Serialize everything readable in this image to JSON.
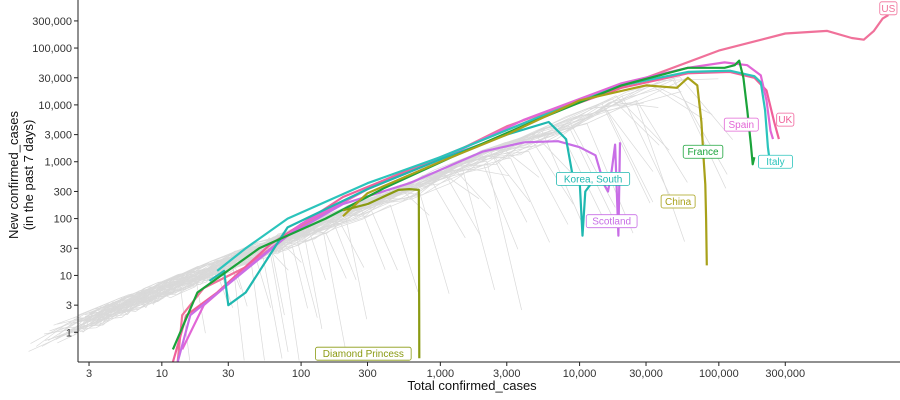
{
  "chart_data": {
    "type": "line",
    "title": "",
    "xlabel": "Total confirmed_cases",
    "ylabel_line1": "New confirmed_cases",
    "ylabel_line2": "(in the past 7 days)",
    "x_scale": "log",
    "y_scale": "log",
    "xlim": [
      2.5,
      2000000
    ],
    "ylim": [
      0.3,
      700000
    ],
    "x_ticks": [
      {
        "value": 3,
        "label": "3"
      },
      {
        "value": 10,
        "label": "10"
      },
      {
        "value": 30,
        "label": "30"
      },
      {
        "value": 100,
        "label": "100"
      },
      {
        "value": 300,
        "label": "300"
      },
      {
        "value": 1000,
        "label": "1,000"
      },
      {
        "value": 3000,
        "label": "3,000"
      },
      {
        "value": 10000,
        "label": "10,000"
      },
      {
        "value": 30000,
        "label": "30,000"
      },
      {
        "value": 100000,
        "label": "100,000"
      },
      {
        "value": 300000,
        "label": "300,000"
      }
    ],
    "y_ticks": [
      {
        "value": 1,
        "label": "1"
      },
      {
        "value": 3,
        "label": "3"
      },
      {
        "value": 10,
        "label": "10"
      },
      {
        "value": 30,
        "label": "30"
      },
      {
        "value": 100,
        "label": "100"
      },
      {
        "value": 300,
        "label": "300"
      },
      {
        "value": 1000,
        "label": "1,000"
      },
      {
        "value": 3000,
        "label": "3,000"
      },
      {
        "value": 10000,
        "label": "10,000"
      },
      {
        "value": 30000,
        "label": "30,000"
      },
      {
        "value": 100000,
        "label": "100,000"
      },
      {
        "value": 300000,
        "label": "300,000"
      }
    ],
    "grid": false,
    "legend": "none",
    "series": [
      {
        "name": "US",
        "color": "#f0719a",
        "points": [
          [
            13,
            0.3
          ],
          [
            14,
            2
          ],
          [
            20,
            6
          ],
          [
            40,
            14
          ],
          [
            100,
            75
          ],
          [
            300,
            330
          ],
          [
            1000,
            1100
          ],
          [
            3000,
            4200
          ],
          [
            10000,
            12000
          ],
          [
            30000,
            30000
          ],
          [
            100000,
            90000
          ],
          [
            300000,
            180000
          ],
          [
            600000,
            200000
          ],
          [
            900000,
            150000
          ],
          [
            1100000,
            140000
          ],
          [
            1300000,
            200000
          ],
          [
            1500000,
            330000
          ],
          [
            1650000,
            380000
          ]
        ]
      },
      {
        "name": "UK",
        "color": "#f0609a",
        "points": [
          [
            12,
            0.3
          ],
          [
            15,
            2
          ],
          [
            25,
            5
          ],
          [
            60,
            35
          ],
          [
            200,
            240
          ],
          [
            1000,
            1200
          ],
          [
            5000,
            6000
          ],
          [
            20000,
            20000
          ],
          [
            60000,
            36000
          ],
          [
            120000,
            38000
          ],
          [
            180000,
            30000
          ],
          [
            220000,
            18000
          ],
          [
            250000,
            5000
          ],
          [
            270000,
            2500
          ]
        ]
      },
      {
        "name": "Spain",
        "color": "#e266d6",
        "points": [
          [
            14,
            0.5
          ],
          [
            20,
            3
          ],
          [
            40,
            13
          ],
          [
            100,
            80
          ],
          [
            300,
            330
          ],
          [
            1000,
            1100
          ],
          [
            4000,
            5500
          ],
          [
            20000,
            24000
          ],
          [
            60000,
            45000
          ],
          [
            110000,
            56000
          ],
          [
            160000,
            50000
          ],
          [
            200000,
            33000
          ],
          [
            220000,
            12000
          ],
          [
            235000,
            3500
          ],
          [
            245000,
            2500
          ]
        ]
      },
      {
        "name": "Scotland",
        "color": "#c86ee6",
        "points": [
          [
            13,
            0.3
          ],
          [
            16,
            2
          ],
          [
            30,
            7
          ],
          [
            80,
            50
          ],
          [
            200,
            180
          ],
          [
            600,
            420
          ],
          [
            2000,
            1500
          ],
          [
            4000,
            2200
          ],
          [
            7000,
            2300
          ],
          [
            10000,
            1800
          ],
          [
            13000,
            1300
          ],
          [
            15000,
            400
          ],
          [
            16000,
            300
          ],
          [
            17000,
            700
          ],
          [
            18000,
            2000
          ],
          [
            18500,
            300
          ],
          [
            19000,
            50
          ],
          [
            19500,
            2200
          ]
        ]
      },
      {
        "name": "Italy",
        "color": "#2bc4bc",
        "points": [
          [
            25,
            12
          ],
          [
            40,
            30
          ],
          [
            80,
            100
          ],
          [
            300,
            420
          ],
          [
            1000,
            1200
          ],
          [
            5000,
            6000
          ],
          [
            20000,
            22000
          ],
          [
            60000,
            38000
          ],
          [
            120000,
            40000
          ],
          [
            180000,
            32000
          ],
          [
            200000,
            25000
          ],
          [
            215000,
            8000
          ],
          [
            225000,
            1800
          ],
          [
            230000,
            1200
          ]
        ]
      },
      {
        "name": "Korea, South",
        "color": "#1fb8b0",
        "points": [
          [
            22,
            8
          ],
          [
            28,
            12
          ],
          [
            30,
            3
          ],
          [
            40,
            5
          ],
          [
            80,
            70
          ],
          [
            300,
            330
          ],
          [
            1000,
            1100
          ],
          [
            3000,
            3000
          ],
          [
            6000,
            5000
          ],
          [
            8000,
            2500
          ],
          [
            9000,
            500
          ],
          [
            10000,
            480
          ],
          [
            10500,
            50
          ],
          [
            11000,
            300
          ],
          [
            12000,
            400
          ]
        ]
      },
      {
        "name": "France",
        "color": "#1aa33a",
        "points": [
          [
            12,
            0.5
          ],
          [
            18,
            5
          ],
          [
            50,
            30
          ],
          [
            150,
            100
          ],
          [
            400,
            350
          ],
          [
            1200,
            1200
          ],
          [
            5000,
            5500
          ],
          [
            20000,
            22000
          ],
          [
            60000,
            45000
          ],
          [
            110000,
            45000
          ],
          [
            130000,
            50000
          ],
          [
            140000,
            60000
          ],
          [
            150000,
            30000
          ],
          [
            160000,
            8000
          ],
          [
            170000,
            2000
          ],
          [
            175000,
            900
          ],
          [
            180000,
            1200
          ]
        ]
      },
      {
        "name": "China",
        "color": "#a8a11a",
        "points": [
          [
            200,
            110
          ],
          [
            300,
            280
          ],
          [
            1000,
            1000
          ],
          [
            3000,
            3000
          ],
          [
            10000,
            12000
          ],
          [
            30000,
            22000
          ],
          [
            50000,
            20000
          ],
          [
            60000,
            30000
          ],
          [
            70000,
            22000
          ],
          [
            75000,
            5000
          ],
          [
            78000,
            1000
          ],
          [
            80000,
            400
          ],
          [
            81000,
            100
          ],
          [
            82000,
            15
          ]
        ]
      },
      {
        "name": "Diamond Princess",
        "color": "#8a9a12",
        "points": [
          [
            200,
            140
          ],
          [
            300,
            180
          ],
          [
            500,
            320
          ],
          [
            600,
            330
          ],
          [
            700,
            320
          ],
          [
            705,
            2
          ],
          [
            706,
            0.35
          ]
        ]
      }
    ],
    "labels": [
      {
        "series": "US",
        "text": "US",
        "x": 1650000,
        "y": 500000,
        "color": "#f0719a"
      },
      {
        "series": "UK",
        "text": "UK",
        "x": 300000,
        "y": 5500,
        "color": "#f0609a"
      },
      {
        "series": "Spain",
        "text": "Spain",
        "x": 145000,
        "y": 4500,
        "color": "#e266d6"
      },
      {
        "series": "Italy",
        "text": "Italy",
        "x": 255000,
        "y": 1000,
        "color": "#2bc4bc"
      },
      {
        "series": "France",
        "text": "France",
        "x": 77000,
        "y": 1500,
        "color": "#1aa33a"
      },
      {
        "series": "Korea, South",
        "text": "Korea, South",
        "x": 12500,
        "y": 500,
        "color": "#1fb8b0"
      },
      {
        "series": "Scotland",
        "text": "Scotland",
        "x": 17000,
        "y": 90,
        "color": "#c86ee6"
      },
      {
        "series": "China",
        "text": "China",
        "x": 51000,
        "y": 200,
        "color": "#a8a11a"
      },
      {
        "series": "Diamond Princess",
        "text": "Diamond Princess",
        "x": 280,
        "y": 0.42,
        "color": "#8a9a12"
      }
    ]
  }
}
